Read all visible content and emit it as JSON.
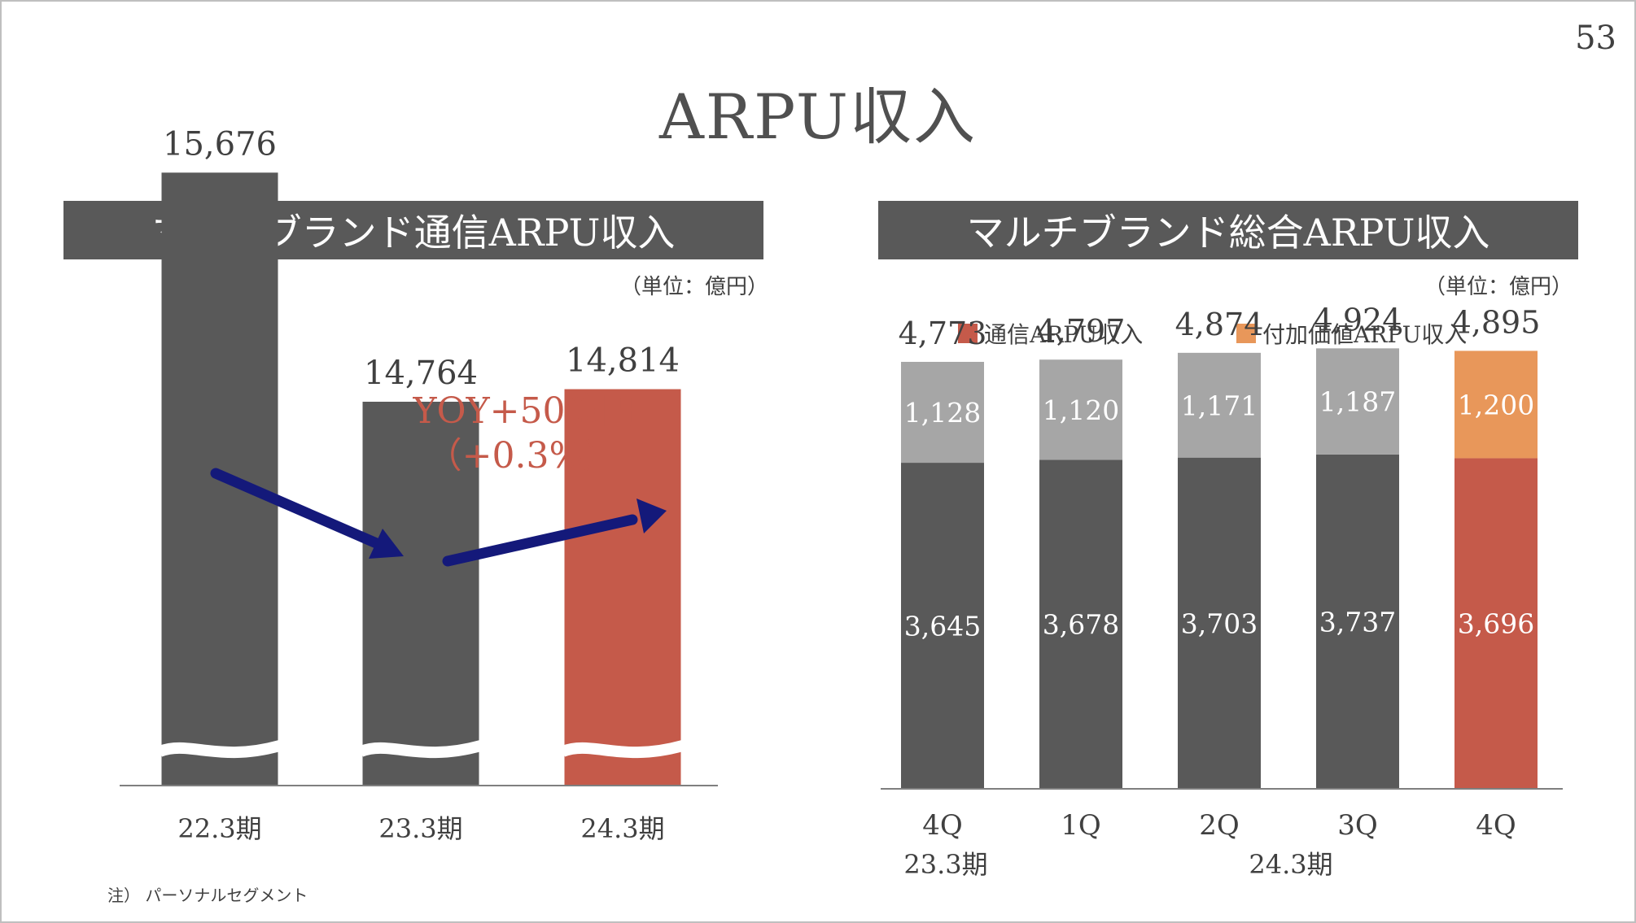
{
  "page_number": "53",
  "title": "ARPU収入",
  "left_panel": {
    "header": "マルチブランド通信ARPU収入",
    "unit": "（単位：億円）",
    "annotation_line1": "YOY+50億円",
    "annotation_line2": "（+0.3%）"
  },
  "right_panel": {
    "header": "マルチブランド総合ARPU収入",
    "unit": "（単位：億円）",
    "legend": [
      {
        "label": "通信ARPU収入",
        "color": "#c55a4a"
      },
      {
        "label": "付加価値ARPU収入",
        "color": "#e8975a"
      }
    ],
    "period_labels": [
      "23.3期",
      "24.3期"
    ]
  },
  "footnote": "注） パーソナルセグメント",
  "colors": {
    "dark_bar": "#595959",
    "light_bar": "#a6a6a6",
    "accent_red": "#c55a4a",
    "accent_orange": "#e8975a",
    "arrow": "#14197a",
    "annotation": "#c55a4a"
  },
  "chart_data": [
    {
      "type": "bar",
      "axis_break": true,
      "categories": [
        "22.3期",
        "23.3期",
        "24.3期"
      ],
      "values": [
        15676,
        14764,
        14814
      ],
      "labels": [
        "15,676",
        "14,764",
        "14,814"
      ],
      "highlight_index": 2
    },
    {
      "type": "bar",
      "stacked": true,
      "categories": [
        "4Q",
        "1Q",
        "2Q",
        "3Q",
        "4Q"
      ],
      "series": [
        {
          "name": "通信ARPU収入",
          "values": [
            3645,
            3678,
            3703,
            3737,
            3696
          ],
          "labels": [
            "3,645",
            "3,678",
            "3,703",
            "3,737",
            "3,696"
          ]
        },
        {
          "name": "付加価値ARPU収入",
          "values": [
            1128,
            1120,
            1171,
            1187,
            1200
          ],
          "labels": [
            "1,128",
            "1,120",
            "1,171",
            "1,187",
            "1,200"
          ]
        }
      ],
      "totals": [
        4773,
        4797,
        4874,
        4924,
        4895
      ],
      "total_labels": [
        "4,773",
        "4,797",
        "4,874",
        "4,924",
        "4,895"
      ],
      "highlight_index": 4
    }
  ]
}
